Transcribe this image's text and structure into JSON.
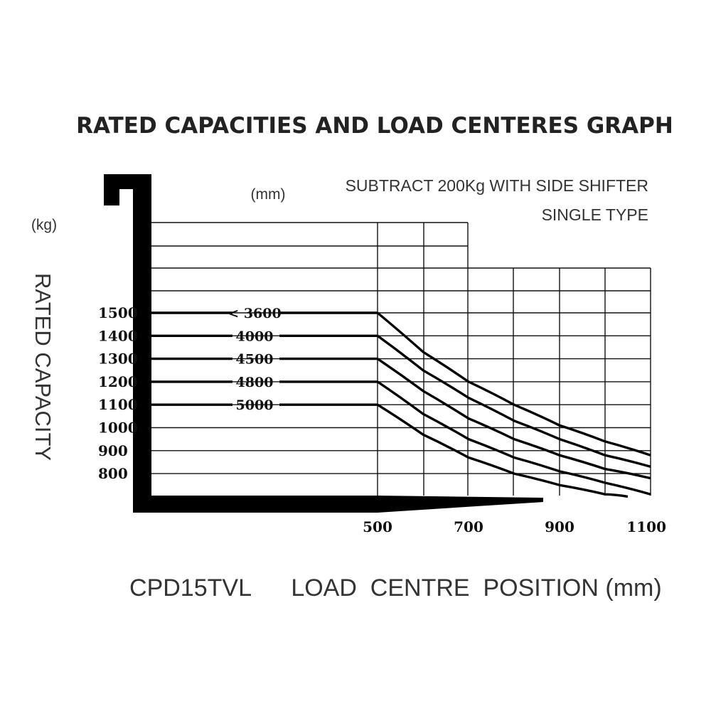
{
  "title": "RATED CAPACITIES AND LOAD CENTERES GRAPH",
  "notes": {
    "line1": "SUBTRACT 200Kg WITH SIDE SHIFTER",
    "line2": "SINGLE TYPE"
  },
  "footer": {
    "model": "CPD15TVL",
    "xlabel": "LOAD  CENTRE  POSITION (mm)"
  },
  "chart_data": {
    "type": "line",
    "title": "RATED CAPACITIES AND LOAD CENTERES GRAPH",
    "xlabel": "LOAD  CENTRE  POSITION (mm)",
    "ylabel": "RATED CAPACITY",
    "x_unit": "(mm)",
    "y_unit": "(kg)",
    "x_ticks": [
      500,
      700,
      900,
      1100
    ],
    "y_ticks": [
      1500,
      1400,
      1300,
      1200,
      1100,
      1000,
      900,
      800
    ],
    "xlim": [
      500,
      1100
    ],
    "ylim": [
      700,
      1700
    ],
    "grid": true,
    "series": [
      {
        "name": "< 3600",
        "x": [
          500,
          600,
          700,
          800,
          900,
          1000,
          1100
        ],
        "y": [
          1500,
          1330,
          1200,
          1100,
          1010,
          940,
          880
        ]
      },
      {
        "name": "4000",
        "x": [
          500,
          600,
          700,
          800,
          900,
          1000,
          1100
        ],
        "y": [
          1400,
          1250,
          1130,
          1030,
          950,
          880,
          830
        ]
      },
      {
        "name": "4500",
        "x": [
          500,
          600,
          700,
          800,
          900,
          1000,
          1100
        ],
        "y": [
          1300,
          1160,
          1040,
          950,
          880,
          820,
          780
        ]
      },
      {
        "name": "4800",
        "x": [
          500,
          600,
          700,
          800,
          900,
          1000,
          1100
        ],
        "y": [
          1200,
          1060,
          950,
          870,
          810,
          760,
          710
        ]
      },
      {
        "name": "5000",
        "x": [
          500,
          600,
          700,
          800,
          900,
          1000,
          1050
        ],
        "y": [
          1100,
          970,
          870,
          800,
          750,
          710,
          700
        ]
      }
    ]
  }
}
